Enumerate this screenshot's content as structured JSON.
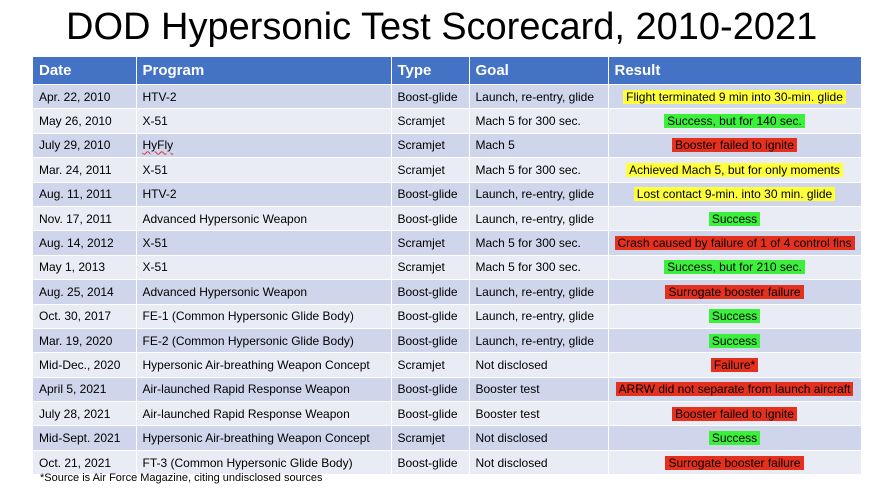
{
  "title": "DOD Hypersonic Test Scorecard, 2010-2021",
  "headers": [
    "Date",
    "Program",
    "Type",
    "Goal",
    "Result"
  ],
  "rows": [
    {
      "date": "Apr. 22, 2010",
      "program": "HTV-2",
      "type": "Boost-glide",
      "goal": "Launch, re-entry, glide",
      "result": "Flight terminated 9 min into 30-min. glide",
      "highlight": "yellow"
    },
    {
      "date": "May 26, 2010",
      "program": "X-51",
      "type": "Scramjet",
      "goal": "Mach 5 for 300 sec.",
      "result": "Success, but for 140 sec.",
      "highlight": "green"
    },
    {
      "date": "July 29, 2010",
      "program": "HyFly",
      "type": "Scramjet",
      "goal": "Mach 5",
      "result": "Booster failed to ignite",
      "highlight": "red"
    },
    {
      "date": "Mar. 24, 2011",
      "program": "X-51",
      "type": "Scramjet",
      "goal": "Mach 5 for 300 sec.",
      "result": "Achieved Mach 5, but for only moments",
      "highlight": "yellow"
    },
    {
      "date": "Aug. 11, 2011",
      "program": "HTV-2",
      "type": "Boost-glide",
      "goal": "Launch, re-entry, glide",
      "result": "Lost contact 9-min. into 30 min. glide",
      "highlight": "yellow"
    },
    {
      "date": "Nov. 17, 2011",
      "program": "Advanced Hypersonic Weapon",
      "type": "Boost-glide",
      "goal": "Launch, re-entry, glide",
      "result": "Success",
      "highlight": "green"
    },
    {
      "date": "Aug. 14, 2012",
      "program": "X-51",
      "type": "Scramjet",
      "goal": "Mach 5 for 300 sec.",
      "result": "Crash caused by failure of 1 of 4 control fins",
      "highlight": "red"
    },
    {
      "date": "May 1, 2013",
      "program": "X-51",
      "type": "Scramjet",
      "goal": "Mach 5 for 300 sec.",
      "result": "Success, but for 210 sec.",
      "highlight": "green"
    },
    {
      "date": "Aug. 25, 2014",
      "program": "Advanced Hypersonic Weapon",
      "type": "Boost-glide",
      "goal": "Launch, re-entry, glide",
      "result": "Surrogate booster failure",
      "highlight": "red"
    },
    {
      "date": "Oct. 30, 2017",
      "program": "FE-1 (Common Hypersonic Glide Body)",
      "type": "Boost-glide",
      "goal": "Launch, re-entry, glide",
      "result": "Success",
      "highlight": "green"
    },
    {
      "date": "Mar. 19, 2020",
      "program": "FE-2 (Common Hypersonic Glide Body)",
      "type": "Boost-glide",
      "goal": "Launch, re-entry, glide",
      "result": "Success",
      "highlight": "green"
    },
    {
      "date": "Mid-Dec., 2020",
      "program": "Hypersonic Air-breathing Weapon Concept",
      "type": "Scramjet",
      "goal": "Not disclosed",
      "result": "Failure*",
      "highlight": "red"
    },
    {
      "date": "April 5, 2021",
      "program": "Air-launched Rapid Response Weapon",
      "type": "Boost-glide",
      "goal": "Booster test",
      "result": "ARRW did not separate from launch aircraft",
      "highlight": "red"
    },
    {
      "date": "July 28, 2021",
      "program": "Air-launched Rapid Response Weapon",
      "type": "Boost-glide",
      "goal": "Booster test",
      "result": "Booster failed to ignite",
      "highlight": "red"
    },
    {
      "date": "Mid-Sept. 2021",
      "program": "Hypersonic Air-breathing Weapon Concept",
      "type": "Scramjet",
      "goal": "Not disclosed",
      "result": "Success",
      "highlight": "green"
    },
    {
      "date": "Oct. 21, 2021",
      "program": "FT-3 (Common Hypersonic Glide Body)",
      "type": "Boost-glide",
      "goal": "Not disclosed",
      "result": "Surrogate booster failure",
      "highlight": "red"
    }
  ],
  "footnote": "*Source is Air Force Magazine, citing undisclosed sources",
  "colors": {
    "header": "#4472C4",
    "row_dark": "#CFD5EA",
    "row_light": "#E9EBF5",
    "yellow": "#FFFF3C",
    "green": "#3BF03B",
    "red": "#E6301E"
  }
}
